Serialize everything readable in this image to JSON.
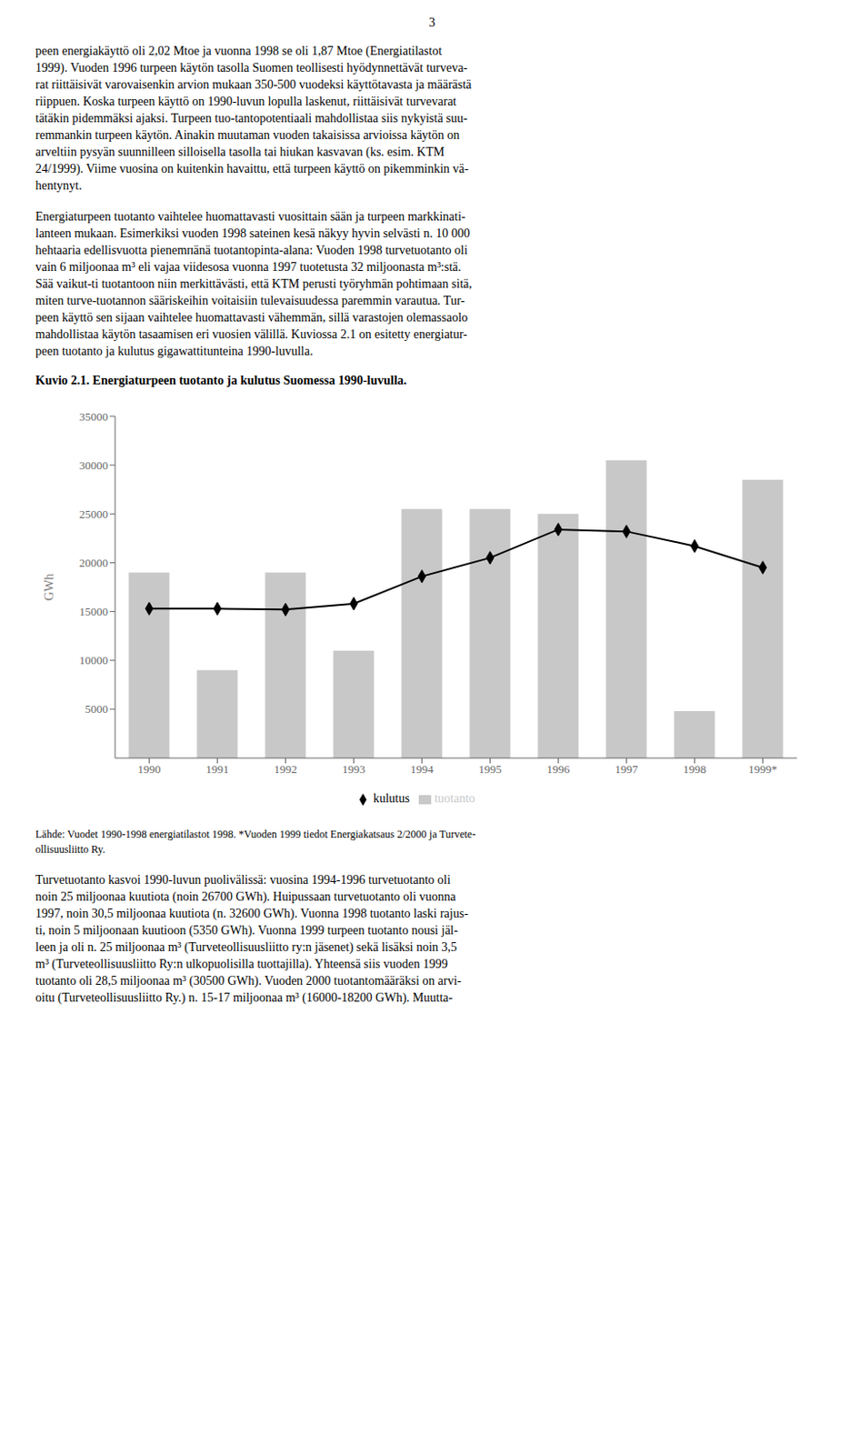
{
  "chart_data": {
    "type": "bar",
    "title": "Kuvio 2.1. Energiaturpeen tuotanto ja kulutus Suomessa 1990-luvulla.",
    "y_label": "GWh",
    "categories": [
      "1990",
      "1991",
      "1992",
      "1993",
      "1994",
      "1995",
      "1996",
      "1997",
      "1998",
      "1999*"
    ],
    "series": [
      {
        "name": "tuotanto",
        "type": "bar",
        "color": "#c8c8c8",
        "values": [
          19000,
          9000,
          19000,
          11000,
          25500,
          25500,
          25000,
          30500,
          4800,
          28500
        ]
      },
      {
        "name": "kulutus",
        "type": "line",
        "color": "#000000",
        "marker": "diamond",
        "values": [
          15300,
          15300,
          15200,
          15800,
          18600,
          20500,
          23400,
          23200,
          21700,
          19500
        ]
      }
    ],
    "ylim": [
      0,
      35000
    ],
    "yticks": [
      5000,
      10000,
      15000,
      20000,
      25000,
      30000,
      35000
    ],
    "grid": false,
    "legend": "bottom",
    "annotations": [
      [
        "3"
      ],
      [
        "peen energiakäyttö oli 2,02 Mtoe ja vuonna 1998 se oli 1,87 Mtoe (Energiatilastot",
        "1999). Vuoden 1996 turpeen käytön tasolla Suomen teollisesti hyödynnettävät turveva-",
        "rat riittäisivät varovaisenkin arvion mukaan 350-500 vuodeksi käyttötavasta ja määrästä",
        "riippuen. Koska turpeen käyttö on 1990-luvun lopulla laskenut, riittäisivät turvevarat",
        "tätäkin pidemmäksi ajaksi. Turpeen tuo-tantopotentiaali mahdollistaa siis nykyistä suu-",
        "remmankin turpeen käytön. Ainakin muutaman vuoden takaisissa arvioissa käytön on",
        "arveltiin pysyän suunnilleen silloisella tasolla tai hiukan kasvavan (ks. esim. KTM",
        "24/1999). Viime vuosina on kuitenkin havaittu, että turpeen käyttö on pikemminkin vä-",
        "hentynyt."
      ],
      [
        "Energiaturpeen tuotanto vaihtelee huomattavasti vuosittain sään ja turpeen markkinati-",
        "lanteen mukaan. Esimerkiksi vuoden 1998 sateinen kesä näkyy hyvin selvästi n. 10 000",
        "hehtaaria edellisvuotta pienemпänä tuotantopinta-alana: Vuoden 1998 turvetuotanto oli",
        "vain 6 miljoonaa m³ eli vajaa viidesosa vuonna 1997 tuotetusta 32 miljoonasta m³:stä.",
        "Sää vaikut-ti tuotantoon niin merkittävästi, että KTM perusti työryhmän pohtimaan sitä,",
        "miten turve-tuotannon sääriskeihin voitaisiin tulevaisuudessa paremmin varautua. Tur-",
        "peen käyttö sen sijaan vaihtelee huomattavasti vähemmän, sillä varastojen olemassaolo",
        "mahdollistaa käytön tasaamisen eri vuosien välillä. Kuviossa 2.1 on esitetty energiatur-",
        "peen tuotanto ja kulutus gigawattitunteina 1990-luvulla."
      ],
      [
        "Lähde: Vuodet 1990-1998 energiatilastot 1998. *Vuoden 1999 tiedot Energiakatsaus 2/2000 ja Turvete-",
        "ollisuusliitto Ry."
      ],
      [
        "Turvetuotanto kasvoi 1990-luvun puolivälissä: vuosina 1994-1996 turvetuotanto oli",
        "noin 25 miljoonaa kuutiota (noin 26700 GWh). Huipussaan turvetuotanto oli vuonna",
        "1997, noin 30,5 miljoonaa kuutiota (n. 32600 GWh). Vuonna 1998 tuotanto laski rajus-",
        "ti, noin 5 miljoonaan kuutioon (5350 GWh). Vuonna 1999 turpeen tuotanto nousi jäl-",
        "leen ja oli n. 25 miljoonaa m³ (Turveteollisuusliitto ry:n jäsenet) sekä lisäksi noin 3,5",
        "m³ (Turveteollisuusliitto Ry:n ulkopuolisilla tuottajilla). Yhteensä siis vuoden 1999",
        "tuotanto oli 28,5 miljoonaa m³ (30500 GWh). Vuoden 2000 tuotantomääräksi on arvi-",
        "oitu (Turveteollisuusliitto Ry.) n. 15-17 miljoonaa m³ (16000-18200 GWh). Muutta-"
      ]
    ]
  }
}
